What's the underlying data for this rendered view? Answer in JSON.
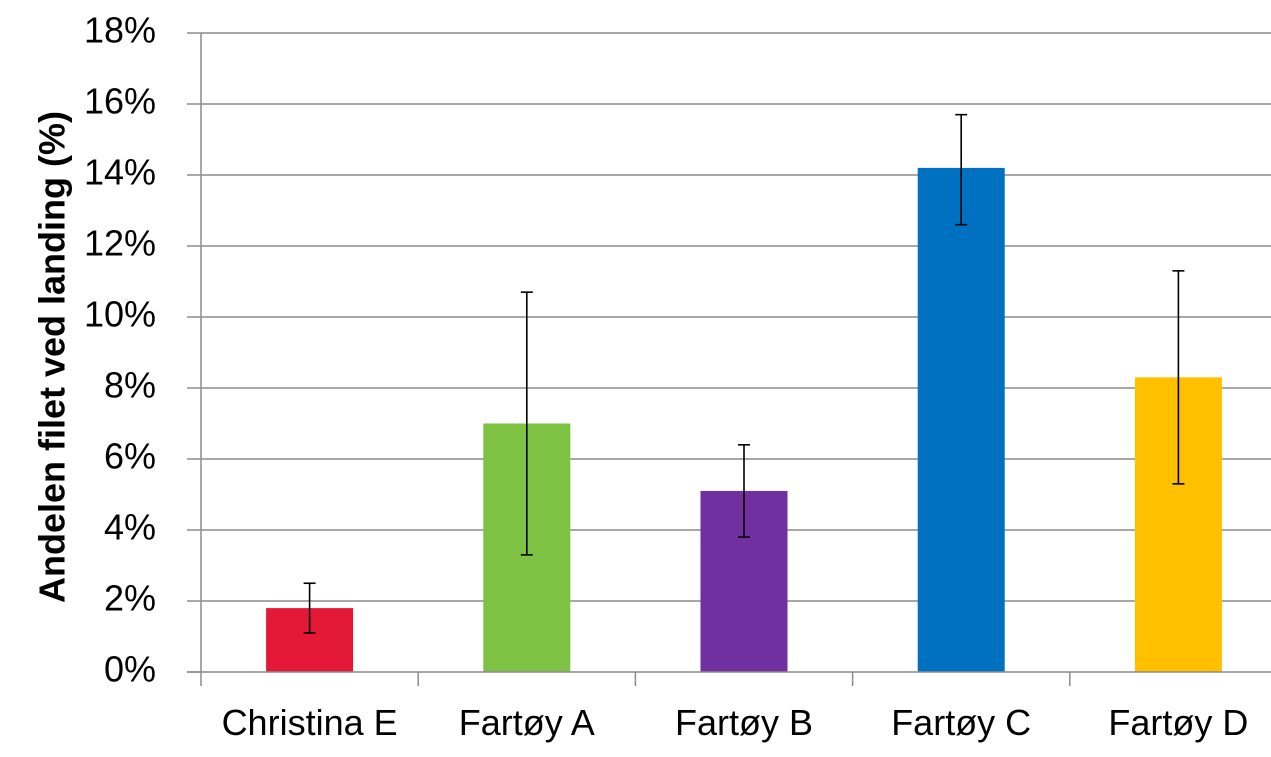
{
  "chart_data": {
    "type": "bar",
    "title": "",
    "xlabel": "",
    "ylabel": "Andelen filet ved landing (%)",
    "categories": [
      "Christina E",
      "Fartøy A",
      "Fartøy B",
      "Fartøy C",
      "Fartøy D"
    ],
    "values": [
      1.8,
      7.0,
      5.1,
      14.2,
      8.3
    ],
    "error_low": [
      1.1,
      3.3,
      3.8,
      12.6,
      5.3
    ],
    "error_high": [
      2.5,
      10.7,
      6.4,
      15.7,
      11.3
    ],
    "colors": [
      "#e31937",
      "#7dc243",
      "#7030a0",
      "#0070c0",
      "#ffc000"
    ],
    "ylim": [
      0,
      18
    ],
    "yticks": [
      0,
      2,
      4,
      6,
      8,
      10,
      12,
      14,
      16,
      18
    ],
    "ytick_labels": [
      "0%",
      "2%",
      "4%",
      "6%",
      "8%",
      "10%",
      "12%",
      "14%",
      "16%",
      "18%"
    ],
    "grid": true,
    "legend": "none"
  }
}
